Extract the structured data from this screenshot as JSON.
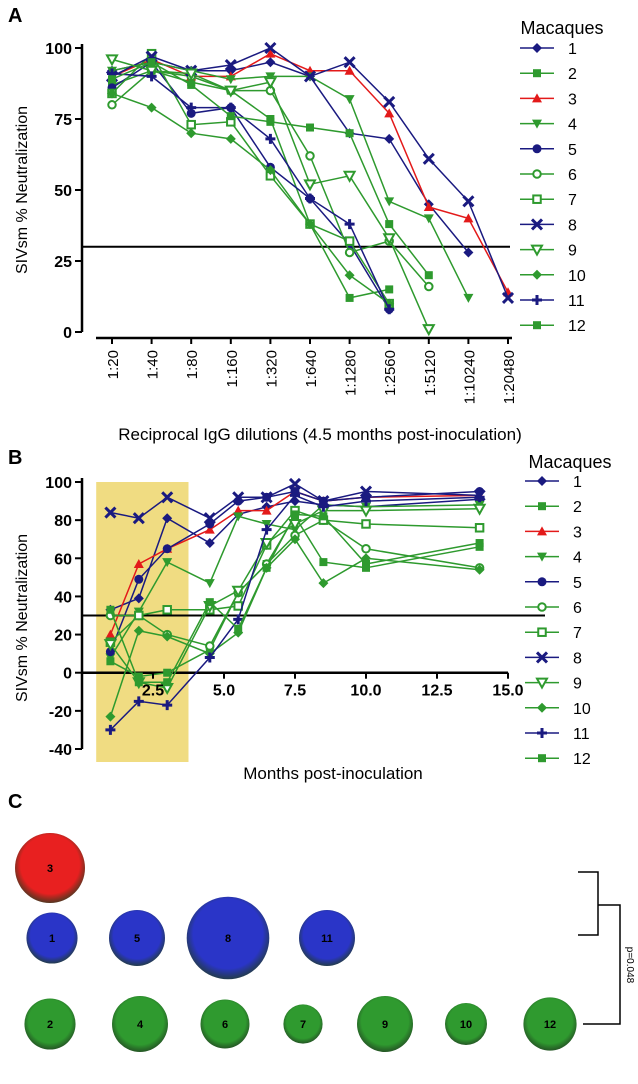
{
  "colors": {
    "navy": "#1a1a80",
    "green": "#2e9a2e",
    "red": "#e31a1a",
    "highlight": "#f0dc82",
    "ball_red": "#e82020",
    "ball_blue": "#2a35c8",
    "ball_green": "#2f9a2f"
  },
  "panels": {
    "A": {
      "letter": "A",
      "legend_title": "Macaques",
      "ylabel": "SIVsm % Neutralization",
      "xlabel": "Reciprocal IgG dilutions (4.5 months post-inoculation)"
    },
    "B": {
      "letter": "B",
      "legend_title": "Macaques",
      "ylabel": "SIVsm % Neutralization",
      "xlabel": "Months post-inoculation"
    },
    "C": {
      "letter": "C",
      "pvalue": "p=0.048"
    }
  },
  "legend_items": [
    {
      "label": "1",
      "color": "#1a1a80",
      "marker": "diamond-filled"
    },
    {
      "label": "2",
      "color": "#2e9a2e",
      "marker": "square-filled"
    },
    {
      "label": "3",
      "color": "#e31a1a",
      "marker": "triangle-up-filled"
    },
    {
      "label": "4",
      "color": "#2e9a2e",
      "marker": "triangle-down-filled"
    },
    {
      "label": "5",
      "color": "#1a1a80",
      "marker": "circle-filled"
    },
    {
      "label": "6",
      "color": "#2e9a2e",
      "marker": "circle-open"
    },
    {
      "label": "7",
      "color": "#2e9a2e",
      "marker": "square-open"
    },
    {
      "label": "8",
      "color": "#1a1a80",
      "marker": "x-cross"
    },
    {
      "label": "9",
      "color": "#2e9a2e",
      "marker": "triangle-down-open"
    },
    {
      "label": "10",
      "color": "#2e9a2e",
      "marker": "diamond-filled"
    },
    {
      "label": "11",
      "color": "#1a1a80",
      "marker": "plus"
    },
    {
      "label": "12",
      "color": "#2e9a2e",
      "marker": "square-filled"
    }
  ],
  "chart_data": [
    {
      "type": "line",
      "panel": "A",
      "categories": [
        "1:20",
        "1:40",
        "1:80",
        "1:160",
        "1:320",
        "1:640",
        "1:1280",
        "1:2560",
        "1:5120",
        "1:10240",
        "1:20480"
      ],
      "ylim": [
        0,
        100
      ],
      "yticks": [
        0,
        25,
        50,
        75,
        100
      ],
      "reference_line": 30,
      "legend_title": "Macaques",
      "ylabel": "SIVsm % Neutralization",
      "xlabel": "Reciprocal IgG dilutions (4.5 months post-inoculation)",
      "grid": false,
      "legend_position": "right",
      "series": [
        {
          "name": "1",
          "values": [
            92,
            95,
            92,
            92,
            95,
            90,
            70,
            68,
            45,
            28,
            null
          ]
        },
        {
          "name": "2",
          "values": [
            87,
            92,
            88,
            85,
            75,
            38,
            12,
            15,
            null,
            null,
            null
          ]
        },
        {
          "name": "3",
          "values": [
            90,
            96,
            90,
            90,
            98,
            92,
            92,
            77,
            44,
            40,
            14
          ]
        },
        {
          "name": "4",
          "values": [
            92,
            95,
            92,
            89,
            90,
            90,
            82,
            46,
            40,
            12,
            null
          ]
        },
        {
          "name": "5",
          "values": [
            86,
            95,
            77,
            79,
            58,
            47,
            31,
            8,
            null,
            null,
            null
          ]
        },
        {
          "name": "6",
          "values": [
            80,
            92,
            90,
            85,
            85,
            62,
            28,
            32,
            16,
            null,
            null
          ]
        },
        {
          "name": "7",
          "values": [
            84,
            98,
            73,
            74,
            55,
            38,
            32,
            10,
            null,
            null,
            null
          ]
        },
        {
          "name": "8",
          "values": [
            90,
            97,
            92,
            94,
            100,
            90,
            95,
            81,
            61,
            46,
            12
          ]
        },
        {
          "name": "9",
          "values": [
            96,
            92,
            91,
            85,
            88,
            52,
            55,
            33,
            1,
            null,
            null
          ]
        },
        {
          "name": "10",
          "values": [
            84,
            79,
            70,
            68,
            57,
            38,
            20,
            10,
            null,
            null,
            null
          ]
        },
        {
          "name": "11",
          "values": [
            91,
            90,
            79,
            79,
            68,
            47,
            38,
            8,
            null,
            null,
            null
          ]
        },
        {
          "name": "12",
          "values": [
            89,
            95,
            87,
            76,
            74,
            72,
            70,
            38,
            20,
            null,
            null
          ]
        }
      ]
    },
    {
      "type": "line",
      "panel": "B",
      "x": [
        1,
        2,
        3,
        4.5,
        5.5,
        6.5,
        7.5,
        8.5,
        10,
        14
      ],
      "xlim": [
        0,
        15
      ],
      "xticks": [
        "2.5",
        "5.0",
        "7.5",
        "10.0",
        "12.5",
        "15.0"
      ],
      "ylim": [
        -40,
        100
      ],
      "yticks": [
        -40,
        -20,
        0,
        20,
        40,
        60,
        80,
        100
      ],
      "reference_line": 30,
      "highlight_x": [
        0.5,
        3.75
      ],
      "legend_title": "Macaques",
      "ylabel": "SIVsm % Neutralization",
      "xlabel": "Months post-inoculation",
      "grid": false,
      "legend_position": "right",
      "series": [
        {
          "name": "1",
          "values": [
            33,
            39,
            81,
            68,
            83,
            87,
            90,
            88,
            87,
            91
          ]
        },
        {
          "name": "2",
          "values": [
            6,
            -2,
            0,
            12,
            42,
            57,
            82,
            58,
            55,
            66
          ]
        },
        {
          "name": "3",
          "values": [
            20,
            57,
            65,
            75,
            85,
            85,
            95,
            90,
            92,
            93
          ]
        },
        {
          "name": "4",
          "values": [
            8,
            32,
            58,
            47,
            82,
            78,
            75,
            88,
            87,
            88
          ]
        },
        {
          "name": "5",
          "values": [
            11,
            49,
            65,
            78,
            90,
            92,
            95,
            90,
            92,
            95
          ]
        },
        {
          "name": "6",
          "values": [
            30,
            30,
            20,
            14,
            42,
            57,
            72,
            80,
            65,
            55
          ]
        },
        {
          "name": "7",
          "values": [
            16,
            30,
            33,
            33,
            35,
            67,
            85,
            80,
            78,
            76
          ]
        },
        {
          "name": "8",
          "values": [
            84,
            81,
            92,
            81,
            92,
            92,
            99,
            90,
            95,
            93
          ]
        },
        {
          "name": "9",
          "values": [
            15,
            -5,
            -8,
            35,
            43,
            68,
            78,
            85,
            85,
            86
          ]
        },
        {
          "name": "10",
          "values": [
            -23,
            22,
            19,
            10,
            21,
            55,
            70,
            47,
            60,
            54
          ]
        },
        {
          "name": "11",
          "values": [
            -30,
            -15,
            -17,
            8,
            28,
            75,
            93,
            87,
            90,
            92
          ]
        },
        {
          "name": "12",
          "values": [
            33,
            -5,
            -5,
            37,
            23,
            55,
            83,
            82,
            57,
            68
          ]
        }
      ]
    },
    {
      "type": "bubble",
      "panel": "C",
      "groups": [
        {
          "color_key": "ball_red",
          "members": [
            {
              "label": "3",
              "size": 1.0
            }
          ]
        },
        {
          "color_key": "ball_blue",
          "members": [
            {
              "label": "1",
              "size": 0.73
            },
            {
              "label": "5",
              "size": 0.8
            },
            {
              "label": "8",
              "size": 1.18
            },
            {
              "label": "11",
              "size": 0.8
            }
          ]
        },
        {
          "color_key": "ball_green",
          "members": [
            {
              "label": "2",
              "size": 0.73
            },
            {
              "label": "4",
              "size": 0.8
            },
            {
              "label": "6",
              "size": 0.7
            },
            {
              "label": "7",
              "size": 0.56
            },
            {
              "label": "9",
              "size": 0.8
            },
            {
              "label": "10",
              "size": 0.6
            },
            {
              "label": "12",
              "size": 0.76
            }
          ]
        }
      ],
      "pvalue": "p=0.048"
    }
  ]
}
